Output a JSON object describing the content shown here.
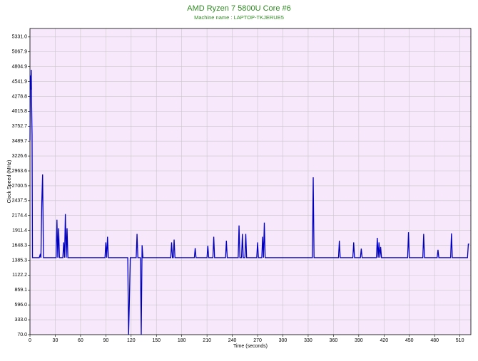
{
  "chart_data": {
    "type": "line",
    "title": "AMD Ryzen 7 5800U Core #6",
    "subtitle": "Machine name : LAPTOP-TKJERUE5",
    "x_label": "Time (seconds)",
    "y_label": "Clock Speed (MHz)",
    "xlim": [
      0,
      523
    ],
    "ylim": [
      70,
      5480
    ],
    "xticks": [
      0,
      30,
      60,
      90,
      120,
      150,
      180,
      210,
      240,
      270,
      300,
      330,
      360,
      390,
      420,
      450,
      480,
      510
    ],
    "yticks": [
      {
        "value": 70,
        "label": "70.0"
      },
      {
        "value": 333,
        "label": "333.0"
      },
      {
        "value": 596,
        "label": "596.0"
      },
      859.1,
      1122.2,
      1385.3,
      1648.3,
      1911.4,
      2174.4,
      2437.5,
      2700.5,
      2963.6,
      3226.6,
      3489.7,
      3752.7,
      4015.8,
      4278.8,
      4541.9,
      4804.9,
      5067.9,
      {
        "value": 5331,
        "label": "5331.0"
      }
    ],
    "grid": true,
    "background": "#f7e8fb",
    "series": [
      {
        "name": "Core #6",
        "color": "#0000c0",
        "x": [
          0,
          0.5,
          1,
          1.5,
          2,
          2.5,
          3,
          11,
          12,
          13,
          14,
          15,
          16,
          31,
          32,
          33,
          34,
          35,
          39,
          40,
          41,
          42,
          43,
          44,
          45,
          89,
          90,
          91,
          92,
          93,
          116,
          117,
          118,
          119,
          126,
          127,
          128,
          131,
          132,
          133,
          134,
          167,
          168,
          169,
          170,
          171,
          172,
          195,
          196,
          197,
          210,
          211,
          212,
          217,
          218,
          219,
          232,
          233,
          234,
          247,
          248,
          249,
          251,
          252,
          253,
          255,
          256,
          257,
          269,
          270,
          271,
          275,
          276,
          277,
          278,
          279,
          335,
          336,
          337,
          366,
          367,
          368,
          383,
          384,
          385,
          392,
          393,
          394,
          411,
          412,
          413,
          414,
          415,
          416,
          417,
          448,
          449,
          450,
          466,
          467,
          468,
          483,
          484,
          485,
          499,
          500,
          501,
          519,
          520,
          521
        ],
        "values": [
          3500,
          4650,
          4400,
          4750,
          4100,
          3600,
          1430,
          1430,
          1480,
          1430,
          2400,
          2900,
          1430,
          1430,
          2100,
          1430,
          1950,
          1430,
          1430,
          1700,
          1430,
          2200,
          1430,
          1950,
          1430,
          1430,
          1700,
          1430,
          1800,
          1430,
          1430,
          70,
          700,
          1430,
          1430,
          1850,
          1430,
          1430,
          70,
          1650,
          1430,
          1430,
          1700,
          1430,
          1430,
          1750,
          1430,
          1430,
          1600,
          1430,
          1430,
          1640,
          1430,
          1430,
          1800,
          1430,
          1430,
          1730,
          1430,
          1430,
          2000,
          1430,
          1430,
          1850,
          1430,
          1430,
          1850,
          1430,
          1430,
          1700,
          1430,
          1430,
          1800,
          1430,
          2050,
          1430,
          1430,
          2850,
          1430,
          1430,
          1730,
          1430,
          1430,
          1700,
          1430,
          1430,
          1590,
          1430,
          1430,
          1780,
          1430,
          1700,
          1430,
          1620,
          1430,
          1430,
          1880,
          1430,
          1430,
          1850,
          1430,
          1430,
          1570,
          1430,
          1430,
          1860,
          1430,
          1430,
          1670,
          1670
        ]
      }
    ]
  }
}
